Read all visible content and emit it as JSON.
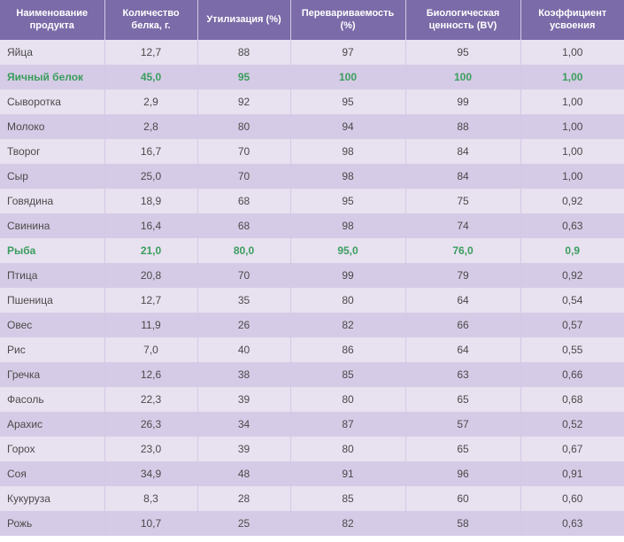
{
  "table": {
    "columns": [
      "Наименование продукта",
      "Количество белка, г.",
      "Утилизация (%)",
      "Перевариваемость (%)",
      "Биологическая ценность (BV)",
      "Коэффициент усвоения"
    ],
    "col_classes": [
      "col0",
      "col1",
      "col2",
      "col3",
      "col4",
      "col5"
    ],
    "header_bg": "#7b6ba8",
    "header_text_color": "#ffffff",
    "row_odd_bg": "#e8e1f0",
    "row_even_bg": "#d6cbe6",
    "border_color": "#d3c9e6",
    "text_color": "#4a4a4a",
    "highlight_color": "#3a9d5d",
    "font_family": "Arial",
    "font_size": 12,
    "header_font_size": 11,
    "rows": [
      {
        "highlight": false,
        "cells": [
          "Яйца",
          "12,7",
          "88",
          "97",
          "95",
          "1,00"
        ]
      },
      {
        "highlight": true,
        "cells": [
          "Яичный белок",
          "45,0",
          "95",
          "100",
          "100",
          "1,00"
        ]
      },
      {
        "highlight": false,
        "cells": [
          "Сыворотка",
          "2,9",
          "92",
          "95",
          "99",
          "1,00"
        ]
      },
      {
        "highlight": false,
        "cells": [
          "Молоко",
          "2,8",
          "80",
          "94",
          "88",
          "1,00"
        ]
      },
      {
        "highlight": false,
        "cells": [
          "Творог",
          "16,7",
          "70",
          "98",
          "84",
          "1,00"
        ]
      },
      {
        "highlight": false,
        "cells": [
          "Сыр",
          "25,0",
          "70",
          "98",
          "84",
          "1,00"
        ]
      },
      {
        "highlight": false,
        "cells": [
          "Говядина",
          "18,9",
          "68",
          "95",
          "75",
          "0,92"
        ]
      },
      {
        "highlight": false,
        "cells": [
          "Свинина",
          "16,4",
          "68",
          "98",
          "74",
          "0,63"
        ]
      },
      {
        "highlight": true,
        "cells": [
          "Рыба",
          "21,0",
          "80,0",
          "95,0",
          "76,0",
          "0,9"
        ]
      },
      {
        "highlight": false,
        "cells": [
          "Птица",
          "20,8",
          "70",
          "99",
          "79",
          "0,92"
        ]
      },
      {
        "highlight": false,
        "cells": [
          "Пшеница",
          "12,7",
          "35",
          "80",
          "64",
          "0,54"
        ]
      },
      {
        "highlight": false,
        "cells": [
          "Овес",
          "11,9",
          "26",
          "82",
          "66",
          "0,57"
        ]
      },
      {
        "highlight": false,
        "cells": [
          "Рис",
          "7,0",
          "40",
          "86",
          "64",
          "0,55"
        ]
      },
      {
        "highlight": false,
        "cells": [
          "Гречка",
          "12,6",
          "38",
          "85",
          "63",
          "0,66"
        ]
      },
      {
        "highlight": false,
        "cells": [
          "Фасоль",
          "22,3",
          "39",
          "80",
          "65",
          "0,68"
        ]
      },
      {
        "highlight": false,
        "cells": [
          "Арахис",
          "26,3",
          "34",
          "87",
          "57",
          "0,52"
        ]
      },
      {
        "highlight": false,
        "cells": [
          "Горох",
          "23,0",
          "39",
          "80",
          "65",
          "0,67"
        ]
      },
      {
        "highlight": false,
        "cells": [
          "Соя",
          "34,9",
          "48",
          "91",
          "96",
          "0,91"
        ]
      },
      {
        "highlight": false,
        "cells": [
          "Кукуруза",
          "8,3",
          "28",
          "85",
          "60",
          "0,60"
        ]
      },
      {
        "highlight": false,
        "cells": [
          "Рожь",
          "10,7",
          "25",
          "82",
          "58",
          "0,63"
        ]
      }
    ]
  }
}
